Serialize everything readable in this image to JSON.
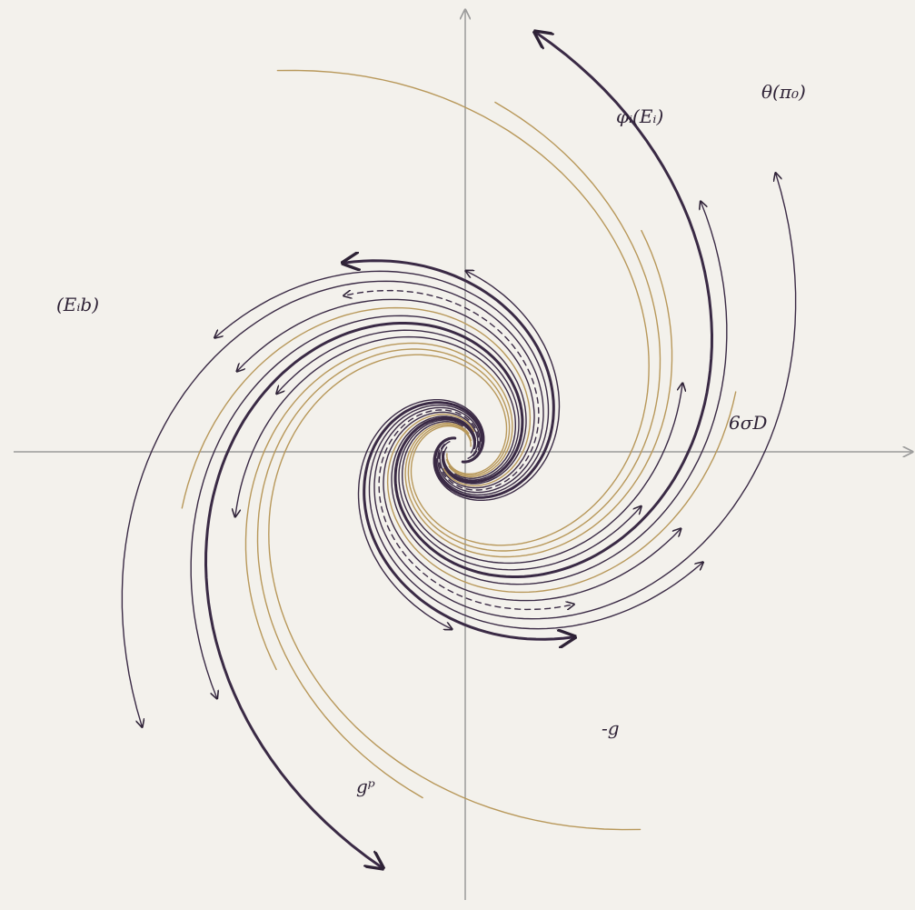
{
  "labels": [
    "φᵢ(Eᵢ)",
    "θ(π₀)",
    "(Eᵢb)",
    "6σD",
    "-g",
    "gᵖ"
  ]
}
